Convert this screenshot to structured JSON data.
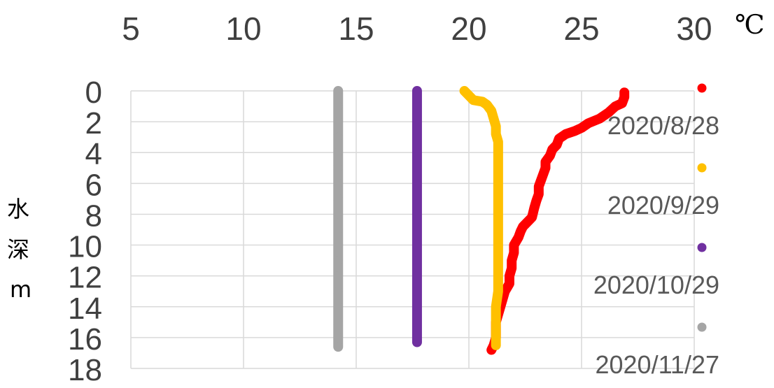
{
  "chart_data": {
    "type": "scatter",
    "title": "",
    "x_unit": "℃",
    "ylabel_chars": [
      "水",
      "深",
      "m"
    ],
    "xlim": [
      5,
      30
    ],
    "ylim": [
      0,
      18
    ],
    "y_reversed": true,
    "x_axis_position": "top",
    "grid": true,
    "x_ticks": [
      "5",
      "10",
      "15",
      "20",
      "25",
      "30"
    ],
    "y_ticks": [
      "0",
      "2",
      "4",
      "6",
      "8",
      "10",
      "12",
      "14",
      "16",
      "18"
    ],
    "legend_position": "right",
    "series": [
      {
        "name": "2020/8/28",
        "color": "#ff0000",
        "points": [
          [
            26.9,
            0.1
          ],
          [
            26.9,
            0.4
          ],
          [
            26.8,
            0.8
          ],
          [
            26.5,
            1.0
          ],
          [
            26.2,
            1.4
          ],
          [
            25.8,
            1.8
          ],
          [
            25.3,
            2.1
          ],
          [
            25.0,
            2.4
          ],
          [
            24.7,
            2.6
          ],
          [
            24.3,
            2.8
          ],
          [
            24.0,
            3.1
          ],
          [
            23.9,
            3.5
          ],
          [
            23.7,
            3.8
          ],
          [
            23.6,
            4.2
          ],
          [
            23.4,
            4.6
          ],
          [
            23.4,
            5.0
          ],
          [
            23.3,
            5.4
          ],
          [
            23.2,
            5.8
          ],
          [
            23.1,
            6.2
          ],
          [
            23.1,
            6.7
          ],
          [
            23.0,
            7.1
          ],
          [
            22.9,
            7.6
          ],
          [
            22.8,
            8.2
          ],
          [
            22.6,
            8.5
          ],
          [
            22.4,
            8.8
          ],
          [
            22.3,
            9.1
          ],
          [
            22.2,
            9.5
          ],
          [
            22.0,
            10.0
          ],
          [
            22.0,
            10.5
          ],
          [
            21.9,
            11.0
          ],
          [
            21.9,
            11.5
          ],
          [
            21.8,
            12.0
          ],
          [
            21.8,
            12.5
          ],
          [
            21.6,
            13.0
          ],
          [
            21.5,
            13.5
          ],
          [
            21.4,
            14.0
          ],
          [
            21.3,
            14.5
          ],
          [
            21.2,
            15.0
          ],
          [
            21.2,
            15.5
          ],
          [
            21.2,
            16.0
          ],
          [
            21.1,
            16.5
          ],
          [
            21.0,
            16.8
          ]
        ]
      },
      {
        "name": "2020/9/29",
        "color": "#ffc000",
        "points": [
          [
            19.8,
            0.0
          ],
          [
            20.0,
            0.3
          ],
          [
            20.2,
            0.6
          ],
          [
            20.6,
            0.7
          ],
          [
            20.8,
            0.9
          ],
          [
            21.0,
            1.3
          ],
          [
            21.1,
            1.8
          ],
          [
            21.2,
            2.3
          ],
          [
            21.2,
            2.8
          ],
          [
            21.3,
            3.3
          ],
          [
            21.3,
            4.0
          ],
          [
            21.3,
            5.0
          ],
          [
            21.3,
            6.0
          ],
          [
            21.3,
            7.0
          ],
          [
            21.3,
            8.0
          ],
          [
            21.3,
            9.0
          ],
          [
            21.3,
            10.0
          ],
          [
            21.3,
            11.0
          ],
          [
            21.3,
            12.0
          ],
          [
            21.3,
            13.0
          ],
          [
            21.2,
            14.0
          ],
          [
            21.2,
            15.0
          ],
          [
            21.2,
            16.0
          ],
          [
            21.2,
            16.5
          ]
        ]
      },
      {
        "name": "2020/10/29",
        "color": "#7030a0",
        "points": [
          [
            17.7,
            0.0
          ],
          [
            17.7,
            1.0
          ],
          [
            17.7,
            2.0
          ],
          [
            17.7,
            3.0
          ],
          [
            17.7,
            4.0
          ],
          [
            17.7,
            5.0
          ],
          [
            17.7,
            6.0
          ],
          [
            17.7,
            7.0
          ],
          [
            17.7,
            8.0
          ],
          [
            17.7,
            9.0
          ],
          [
            17.7,
            10.0
          ],
          [
            17.7,
            11.0
          ],
          [
            17.7,
            12.0
          ],
          [
            17.7,
            13.0
          ],
          [
            17.7,
            14.0
          ],
          [
            17.7,
            15.0
          ],
          [
            17.7,
            16.0
          ],
          [
            17.7,
            16.3
          ]
        ]
      },
      {
        "name": "2020/11/27",
        "color": "#a5a5a5",
        "points": [
          [
            14.2,
            0.0
          ],
          [
            14.2,
            1.0
          ],
          [
            14.2,
            2.0
          ],
          [
            14.2,
            3.0
          ],
          [
            14.2,
            4.0
          ],
          [
            14.2,
            5.0
          ],
          [
            14.2,
            6.0
          ],
          [
            14.2,
            7.0
          ],
          [
            14.2,
            8.0
          ],
          [
            14.2,
            9.0
          ],
          [
            14.2,
            10.0
          ],
          [
            14.2,
            11.0
          ],
          [
            14.2,
            12.0
          ],
          [
            14.2,
            13.0
          ],
          [
            14.2,
            14.0
          ],
          [
            14.2,
            15.0
          ],
          [
            14.2,
            16.0
          ],
          [
            14.2,
            16.6
          ]
        ]
      }
    ]
  }
}
